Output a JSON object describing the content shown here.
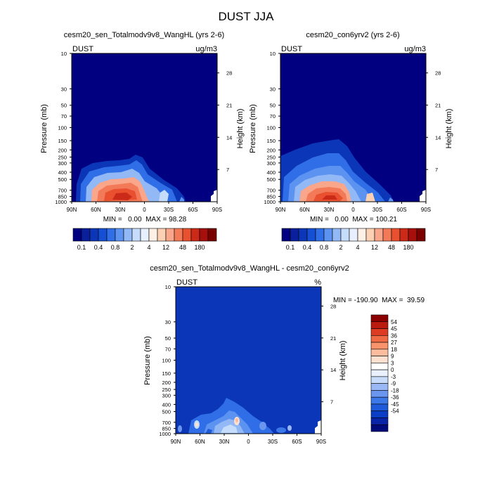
{
  "title": "DUST JJA",
  "colors": {
    "abs_scale": [
      "#000080",
      "#0a1f9c",
      "#0b36b8",
      "#154fd4",
      "#2f6ee6",
      "#5c92f0",
      "#92b8f6",
      "#c6dcfb",
      "#e8f0ff",
      "#fff0e6",
      "#fcd0b3",
      "#f9a68a",
      "#f27a58",
      "#e8502f",
      "#cc2a18",
      "#a60f0b",
      "#7a0000"
    ],
    "diff_scale": [
      "#000a7a",
      "#0a24a8",
      "#0b3ec4",
      "#1f5ad8",
      "#3c78e8",
      "#6a96f0",
      "#9bb8f6",
      "#c9dbfb",
      "#e9f1ff",
      "#ffffff",
      "#fde0cf",
      "#fbbd9e",
      "#f8936c",
      "#f06a44",
      "#dd3c22",
      "#bb1a10",
      "#8b0000"
    ]
  },
  "chart_data": [
    {
      "type": "heatmap",
      "title": "cesm20_sen_Totalmodv9v8_WangHL (yrs 2-6)",
      "left_label": "DUST",
      "units": "ug/m3",
      "xlabel": "",
      "ylabel": "Pressure (mb)",
      "ylabel_right": "Height (km)",
      "x_ticks": [
        "90N",
        "60N",
        "30N",
        "0",
        "30S",
        "60S",
        "90S"
      ],
      "y_ticks": [
        "10",
        "30",
        "50",
        "70",
        "100",
        "150",
        "200",
        "250",
        "300",
        "400",
        "500",
        "700",
        "850",
        "1000"
      ],
      "y_right_ticks": [
        "28",
        "21",
        "14",
        "7"
      ],
      "stats": "MIN =   0.00  MAX = 98.28",
      "colorbar_labels": [
        "0.1",
        "0.4",
        "0.8",
        "2",
        "4",
        "12",
        "48",
        "180"
      ]
    },
    {
      "type": "heatmap",
      "title": "cesm20_con6yrv2 (yrs 2-6)",
      "left_label": "DUST",
      "units": "ug/m3",
      "xlabel": "",
      "ylabel": "Pressure (mb)",
      "ylabel_right": "Height (km)",
      "x_ticks": [
        "90N",
        "60N",
        "30N",
        "0",
        "30S",
        "60S",
        "90S"
      ],
      "y_ticks": [
        "10",
        "30",
        "50",
        "70",
        "100",
        "150",
        "200",
        "250",
        "300",
        "400",
        "500",
        "700",
        "850",
        "1000"
      ],
      "y_right_ticks": [
        "28",
        "21",
        "14",
        "7"
      ],
      "stats": "MIN =   0.00  MAX = 100.21",
      "colorbar_labels": [
        "0.1",
        "0.4",
        "0.8",
        "2",
        "4",
        "12",
        "48",
        "180"
      ]
    },
    {
      "type": "heatmap",
      "title": "cesm20_sen_Totalmodv9v8_WangHL - cesm20_con6yrv2",
      "left_label": "DUST",
      "units": "%",
      "xlabel": "",
      "ylabel": "Pressure (mb)",
      "ylabel_right": "Height (km)",
      "x_ticks": [
        "90N",
        "60N",
        "30N",
        "0",
        "30S",
        "60S",
        "90S"
      ],
      "y_ticks": [
        "10",
        "30",
        "50",
        "70",
        "100",
        "150",
        "200",
        "250",
        "300",
        "400",
        "500",
        "700",
        "850",
        "1000"
      ],
      "y_right_ticks": [
        "28",
        "21",
        "14",
        "7"
      ],
      "stats": "MIN = -190.90  MAX =  39.59",
      "colorbar_labels": [
        "54",
        "45",
        "36",
        "27",
        "18",
        "9",
        "3",
        "0",
        "-3",
        "-9",
        "-18",
        "-36",
        "-45",
        "-54"
      ]
    }
  ]
}
